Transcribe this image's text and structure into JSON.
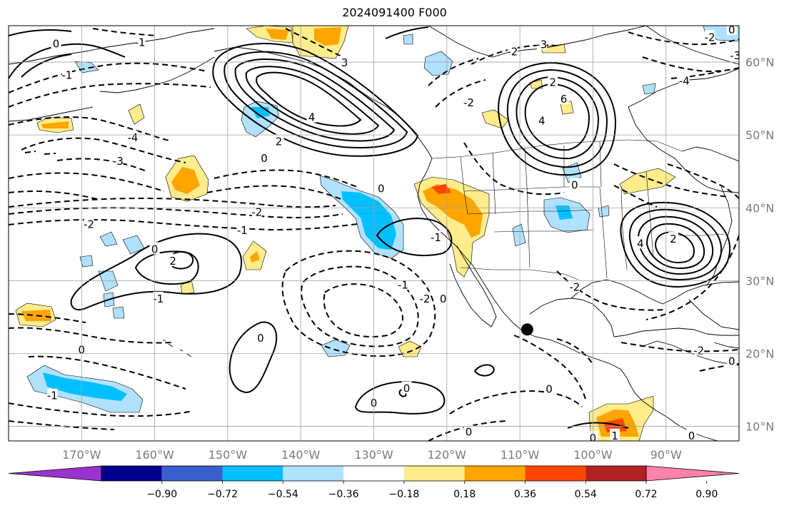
{
  "title": "2024091400 F000",
  "map": {
    "lon_ticks": [
      "170°W",
      "160°W",
      "150°W",
      "140°W",
      "130°W",
      "120°W",
      "110°W",
      "100°W",
      "90°W"
    ],
    "lat_ticks": [
      "60°N",
      "50°N",
      "40°N",
      "30°N",
      "20°N",
      "10°N"
    ],
    "lon_range": [
      -180,
      -80
    ],
    "lat_range": [
      8,
      65
    ],
    "marker": {
      "lon": -109,
      "lat": 23.3
    },
    "contour_labels": [
      {
        "text": "-1",
        "lon": -162,
        "lat": 62.8
      },
      {
        "text": "0",
        "lon": -173.5,
        "lat": 62.6
      },
      {
        "text": "-1",
        "lon": -172,
        "lat": 58.3
      },
      {
        "text": "-4",
        "lon": -163,
        "lat": 49.7
      },
      {
        "text": "-3",
        "lon": -165,
        "lat": 46.5
      },
      {
        "text": "4",
        "lon": -138.5,
        "lat": 52.5
      },
      {
        "text": "2",
        "lon": -143,
        "lat": 49.2
      },
      {
        "text": "0",
        "lon": -145,
        "lat": 46.9
      },
      {
        "text": "3",
        "lon": -134,
        "lat": 60
      },
      {
        "text": "0",
        "lon": -129,
        "lat": 42.7
      },
      {
        "text": "-2",
        "lon": -146,
        "lat": 39.5
      },
      {
        "text": "-2",
        "lon": -169,
        "lat": 37.8
      },
      {
        "text": "-1",
        "lon": -148,
        "lat": 37
      },
      {
        "text": "0",
        "lon": -160,
        "lat": 34.4
      },
      {
        "text": "2",
        "lon": -157.5,
        "lat": 32.8
      },
      {
        "text": "-1",
        "lon": -159.5,
        "lat": 27.6
      },
      {
        "text": "-1",
        "lon": -121.5,
        "lat": 36
      },
      {
        "text": "-1",
        "lon": -126,
        "lat": 29.5
      },
      {
        "text": "-2",
        "lon": -123,
        "lat": 27.6
      },
      {
        "text": "0",
        "lon": -170,
        "lat": 20.6
      },
      {
        "text": "0",
        "lon": -145.5,
        "lat": 22.2
      },
      {
        "text": "0",
        "lon": -120.5,
        "lat": 27.6
      },
      {
        "text": "0",
        "lon": -106,
        "lat": 15.2
      },
      {
        "text": "0",
        "lon": -125.5,
        "lat": 15.3
      },
      {
        "text": "0",
        "lon": -130,
        "lat": 13.3
      },
      {
        "text": "0",
        "lon": -117,
        "lat": 9.3
      },
      {
        "text": "-1",
        "lon": -174,
        "lat": 14.3
      },
      {
        "text": "-2",
        "lon": -117,
        "lat": 54.5
      },
      {
        "text": "-2",
        "lon": -111,
        "lat": 61.5
      },
      {
        "text": "-3",
        "lon": -107,
        "lat": 62.5
      },
      {
        "text": "6",
        "lon": -104,
        "lat": 55
      },
      {
        "text": "4",
        "lon": -107,
        "lat": 52
      },
      {
        "text": "2",
        "lon": -105.5,
        "lat": 57.3
      },
      {
        "text": "0",
        "lon": -102.5,
        "lat": 43.2
      },
      {
        "text": "-2",
        "lon": -102.5,
        "lat": 29.2
      },
      {
        "text": "2",
        "lon": -89,
        "lat": 35.8
      },
      {
        "text": "4",
        "lon": -93.5,
        "lat": 35.2
      },
      {
        "text": "-2",
        "lon": -85.5,
        "lat": 20.5
      },
      {
        "text": "0",
        "lon": -81,
        "lat": 19
      },
      {
        "text": "-4",
        "lon": -87.5,
        "lat": 57.5
      },
      {
        "text": "-3",
        "lon": -80.5,
        "lat": 61
      },
      {
        "text": "-2",
        "lon": -84,
        "lat": 63.5
      },
      {
        "text": "0",
        "lon": -81,
        "lat": 64.5
      },
      {
        "text": "0",
        "lon": -86.5,
        "lat": 8.8
      },
      {
        "text": "1",
        "lon": -97,
        "lat": 8.8
      },
      {
        "text": "0",
        "lon": -100,
        "lat": 8.5
      }
    ]
  },
  "colorbar": {
    "labels": [
      "−0.90",
      "−0.72",
      "−0.54",
      "−0.36",
      "−0.18",
      "0.18",
      "0.36",
      "0.54",
      "0.72",
      "0.90"
    ],
    "colors": [
      "#9a32cd",
      "#00008b",
      "#3a5fcd",
      "#00bfff",
      "#b0e2ff",
      "#ffffff",
      "#ffec8b",
      "#ffa500",
      "#ff4500",
      "#b22222",
      "#ff82ab"
    ]
  }
}
